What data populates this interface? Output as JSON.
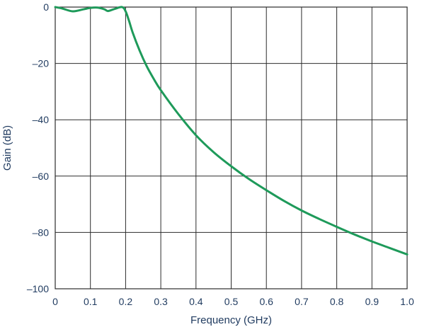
{
  "chart_data": {
    "type": "line",
    "title": "",
    "xlabel": "Frequency (GHz)",
    "ylabel": "Gain (dB)",
    "xlim": [
      0,
      1.0
    ],
    "ylim": [
      -100,
      0
    ],
    "grid": true,
    "xticks": [
      0,
      0.1,
      0.2,
      0.3,
      0.4,
      0.5,
      0.6,
      0.7,
      0.8,
      0.9,
      1.0
    ],
    "xtick_labels": [
      "0",
      "0.1",
      "0.2",
      "0.3",
      "0.4",
      "0.5",
      "0.6",
      "0.7",
      "0.8",
      "0.9",
      "1.0"
    ],
    "yticks": [
      0,
      -20,
      -40,
      -60,
      -80,
      -100
    ],
    "ytick_labels": [
      "0",
      "–20",
      "–40",
      "–60",
      "–80",
      "–100"
    ],
    "series": [
      {
        "color": "#1e9a5a",
        "x": [
          0,
          0.02,
          0.05,
          0.08,
          0.1,
          0.12,
          0.14,
          0.15,
          0.17,
          0.19,
          0.2,
          0.21,
          0.22,
          0.24,
          0.26,
          0.28,
          0.3,
          0.35,
          0.4,
          0.45,
          0.5,
          0.55,
          0.6,
          0.65,
          0.7,
          0.75,
          0.8,
          0.85,
          0.9,
          0.95,
          1.0
        ],
        "y": [
          0,
          -0.5,
          -1.5,
          -0.8,
          -0.3,
          -0.2,
          -0.8,
          -1.4,
          -0.6,
          0,
          -1.5,
          -5,
          -9,
          -15.5,
          -21,
          -25.5,
          -29.5,
          -38,
          -45.5,
          -51.5,
          -56.5,
          -61,
          -65,
          -68.8,
          -72.2,
          -75.2,
          -78,
          -80.7,
          -83.2,
          -85.5,
          -87.8
        ]
      }
    ]
  }
}
